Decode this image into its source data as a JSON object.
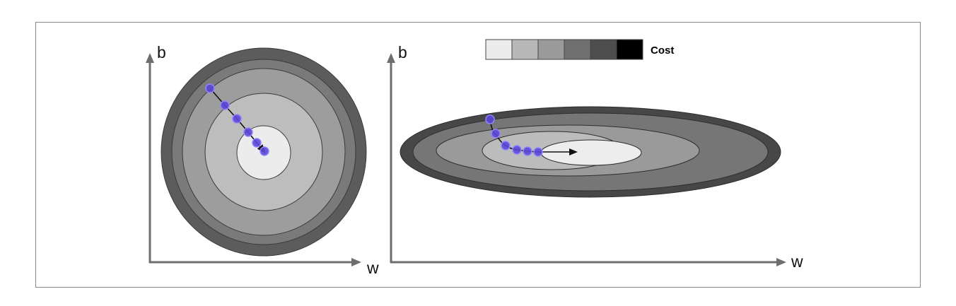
{
  "legend": {
    "label": "Cost",
    "swatches": [
      "#ececec",
      "#b8b8b8",
      "#9a9a9a",
      "#707070",
      "#4d4d4d",
      "#000000"
    ]
  },
  "left_plot": {
    "x_label": "w",
    "y_label": "b",
    "contour_colors": [
      "#5c5c5c",
      "#7a7a7a",
      "#9d9d9d",
      "#bdbdbd",
      "#ececec"
    ],
    "path_color": "#5b46d6"
  },
  "right_plot": {
    "x_label": "w",
    "y_label": "b",
    "contour_colors": [
      "#474747",
      "#767676",
      "#9a9a9a",
      "#bcbcbc",
      "#ededed"
    ],
    "path_color": "#5b46d6"
  },
  "colors": {
    "axis": "#6e6e6e",
    "frame": "#8a8a8a"
  }
}
